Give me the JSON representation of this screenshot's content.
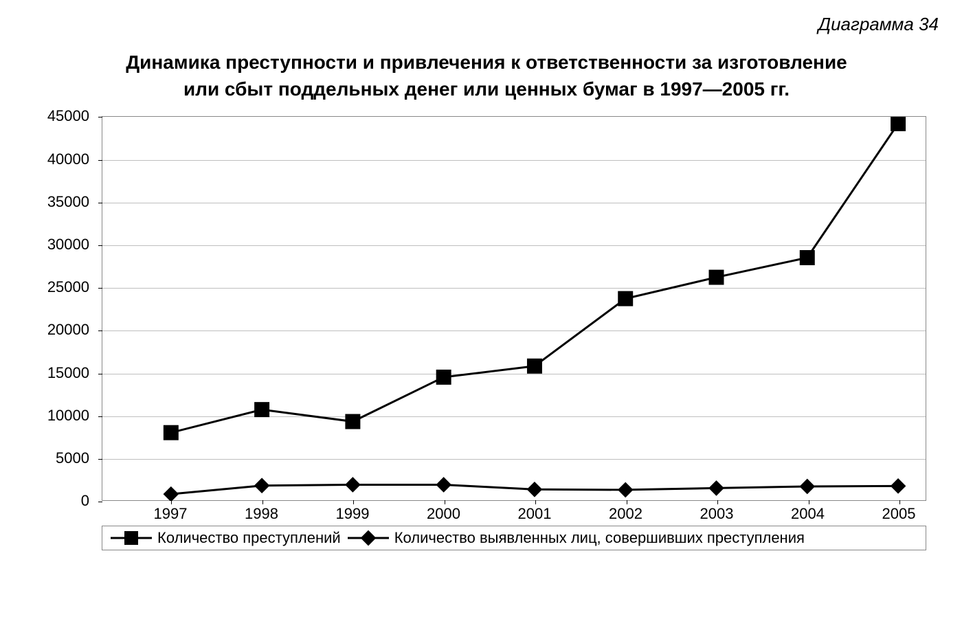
{
  "caption": "Диаграмма 34",
  "title_line1": "Динамика преступности и привлечения к ответственности за изготовление",
  "title_line2": "или сбыт поддельных денег или ценных бумаг в 1997—2005 гг.",
  "chart": {
    "type": "line",
    "background_color": "#ffffff",
    "grid_color": "#bfbfbf",
    "axis_color": "#888888",
    "text_color": "#000000",
    "series_color": "#000000",
    "line_width": 3,
    "marker_size_square": 22,
    "marker_size_diamond": 16,
    "title_fontsize": 28,
    "caption_fontsize": 26,
    "axis_fontsize": 22,
    "legend_fontsize": 22,
    "x_categories": [
      "1997",
      "1998",
      "1999",
      "2000",
      "2001",
      "2002",
      "2003",
      "2004",
      "2005"
    ],
    "ylim": [
      0,
      45000
    ],
    "ytick_step": 5000,
    "y_ticks": [
      0,
      5000,
      10000,
      15000,
      20000,
      25000,
      30000,
      35000,
      40000,
      45000
    ],
    "series": [
      {
        "name": "Количество преступлений",
        "marker": "square",
        "values": [
          8000,
          10700,
          9300,
          14500,
          15800,
          23700,
          26200,
          28500,
          44200
        ]
      },
      {
        "name": "Количество выявленных лиц, совершивших преступления",
        "marker": "diamond",
        "values": [
          800,
          1800,
          1900,
          1900,
          1350,
          1300,
          1500,
          1700,
          1750
        ]
      }
    ]
  }
}
